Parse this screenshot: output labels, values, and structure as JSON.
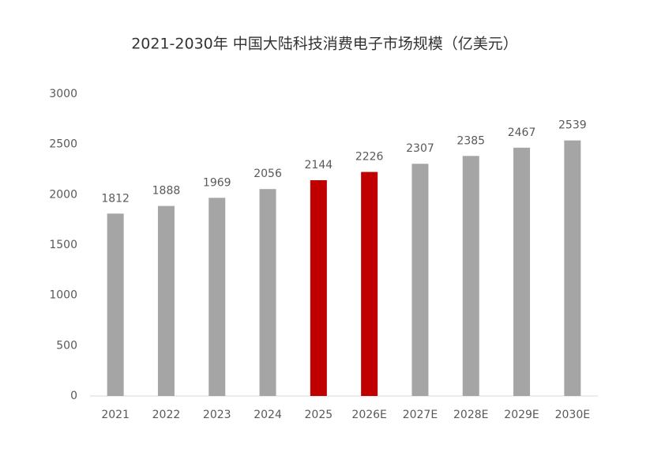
{
  "chart_data": {
    "type": "bar",
    "title": "2021-2030年 中国大陆科技消费电子市场规模（亿美元）",
    "categories": [
      "2021",
      "2022",
      "2023",
      "2024",
      "2025",
      "2026E",
      "2027E",
      "2028E",
      "2029E",
      "2030E"
    ],
    "values": [
      1812,
      1888,
      1969,
      2056,
      2144,
      2226,
      2307,
      2385,
      2467,
      2539
    ],
    "colors": [
      "#a5a5a5",
      "#a5a5a5",
      "#a5a5a5",
      "#a5a5a5",
      "#c00000",
      "#c00000",
      "#a5a5a5",
      "#a5a5a5",
      "#a5a5a5",
      "#a5a5a5"
    ],
    "ylim": [
      0,
      3000
    ],
    "yticks": [
      0,
      500,
      1000,
      1500,
      2000,
      2500,
      3000
    ],
    "grid": false
  }
}
